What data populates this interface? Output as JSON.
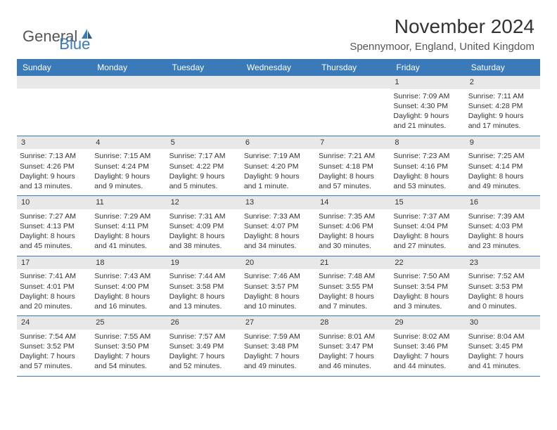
{
  "logo": {
    "general": "General",
    "blue": "Blue"
  },
  "title": "November 2024",
  "location": "Spennymoor, England, United Kingdom",
  "dayHeaders": [
    "Sunday",
    "Monday",
    "Tuesday",
    "Wednesday",
    "Thursday",
    "Friday",
    "Saturday"
  ],
  "colors": {
    "headerBar": "#3a7ab8",
    "dayNumBar": "#e8e8e8",
    "rowBorder": "#3a7ab8",
    "text": "#333333",
    "logoBlue": "#3a7ab8",
    "background": "#ffffff"
  },
  "typography": {
    "titleFontSize": 28,
    "locationFontSize": 15,
    "dayHeaderFontSize": 12,
    "cellFontSize": 10.5,
    "logoFontSize": 22
  },
  "layout": {
    "columns": 7,
    "firstDayOffset": 5,
    "cellMinHeight": 78
  },
  "weeks": [
    [
      null,
      null,
      null,
      null,
      null,
      {
        "n": "1",
        "sr": "Sunrise: 7:09 AM",
        "ss": "Sunset: 4:30 PM",
        "d1": "Daylight: 9 hours",
        "d2": "and 21 minutes."
      },
      {
        "n": "2",
        "sr": "Sunrise: 7:11 AM",
        "ss": "Sunset: 4:28 PM",
        "d1": "Daylight: 9 hours",
        "d2": "and 17 minutes."
      }
    ],
    [
      {
        "n": "3",
        "sr": "Sunrise: 7:13 AM",
        "ss": "Sunset: 4:26 PM",
        "d1": "Daylight: 9 hours",
        "d2": "and 13 minutes."
      },
      {
        "n": "4",
        "sr": "Sunrise: 7:15 AM",
        "ss": "Sunset: 4:24 PM",
        "d1": "Daylight: 9 hours",
        "d2": "and 9 minutes."
      },
      {
        "n": "5",
        "sr": "Sunrise: 7:17 AM",
        "ss": "Sunset: 4:22 PM",
        "d1": "Daylight: 9 hours",
        "d2": "and 5 minutes."
      },
      {
        "n": "6",
        "sr": "Sunrise: 7:19 AM",
        "ss": "Sunset: 4:20 PM",
        "d1": "Daylight: 9 hours",
        "d2": "and 1 minute."
      },
      {
        "n": "7",
        "sr": "Sunrise: 7:21 AM",
        "ss": "Sunset: 4:18 PM",
        "d1": "Daylight: 8 hours",
        "d2": "and 57 minutes."
      },
      {
        "n": "8",
        "sr": "Sunrise: 7:23 AM",
        "ss": "Sunset: 4:16 PM",
        "d1": "Daylight: 8 hours",
        "d2": "and 53 minutes."
      },
      {
        "n": "9",
        "sr": "Sunrise: 7:25 AM",
        "ss": "Sunset: 4:14 PM",
        "d1": "Daylight: 8 hours",
        "d2": "and 49 minutes."
      }
    ],
    [
      {
        "n": "10",
        "sr": "Sunrise: 7:27 AM",
        "ss": "Sunset: 4:13 PM",
        "d1": "Daylight: 8 hours",
        "d2": "and 45 minutes."
      },
      {
        "n": "11",
        "sr": "Sunrise: 7:29 AM",
        "ss": "Sunset: 4:11 PM",
        "d1": "Daylight: 8 hours",
        "d2": "and 41 minutes."
      },
      {
        "n": "12",
        "sr": "Sunrise: 7:31 AM",
        "ss": "Sunset: 4:09 PM",
        "d1": "Daylight: 8 hours",
        "d2": "and 38 minutes."
      },
      {
        "n": "13",
        "sr": "Sunrise: 7:33 AM",
        "ss": "Sunset: 4:07 PM",
        "d1": "Daylight: 8 hours",
        "d2": "and 34 minutes."
      },
      {
        "n": "14",
        "sr": "Sunrise: 7:35 AM",
        "ss": "Sunset: 4:06 PM",
        "d1": "Daylight: 8 hours",
        "d2": "and 30 minutes."
      },
      {
        "n": "15",
        "sr": "Sunrise: 7:37 AM",
        "ss": "Sunset: 4:04 PM",
        "d1": "Daylight: 8 hours",
        "d2": "and 27 minutes."
      },
      {
        "n": "16",
        "sr": "Sunrise: 7:39 AM",
        "ss": "Sunset: 4:03 PM",
        "d1": "Daylight: 8 hours",
        "d2": "and 23 minutes."
      }
    ],
    [
      {
        "n": "17",
        "sr": "Sunrise: 7:41 AM",
        "ss": "Sunset: 4:01 PM",
        "d1": "Daylight: 8 hours",
        "d2": "and 20 minutes."
      },
      {
        "n": "18",
        "sr": "Sunrise: 7:43 AM",
        "ss": "Sunset: 4:00 PM",
        "d1": "Daylight: 8 hours",
        "d2": "and 16 minutes."
      },
      {
        "n": "19",
        "sr": "Sunrise: 7:44 AM",
        "ss": "Sunset: 3:58 PM",
        "d1": "Daylight: 8 hours",
        "d2": "and 13 minutes."
      },
      {
        "n": "20",
        "sr": "Sunrise: 7:46 AM",
        "ss": "Sunset: 3:57 PM",
        "d1": "Daylight: 8 hours",
        "d2": "and 10 minutes."
      },
      {
        "n": "21",
        "sr": "Sunrise: 7:48 AM",
        "ss": "Sunset: 3:55 PM",
        "d1": "Daylight: 8 hours",
        "d2": "and 7 minutes."
      },
      {
        "n": "22",
        "sr": "Sunrise: 7:50 AM",
        "ss": "Sunset: 3:54 PM",
        "d1": "Daylight: 8 hours",
        "d2": "and 3 minutes."
      },
      {
        "n": "23",
        "sr": "Sunrise: 7:52 AM",
        "ss": "Sunset: 3:53 PM",
        "d1": "Daylight: 8 hours",
        "d2": "and 0 minutes."
      }
    ],
    [
      {
        "n": "24",
        "sr": "Sunrise: 7:54 AM",
        "ss": "Sunset: 3:52 PM",
        "d1": "Daylight: 7 hours",
        "d2": "and 57 minutes."
      },
      {
        "n": "25",
        "sr": "Sunrise: 7:55 AM",
        "ss": "Sunset: 3:50 PM",
        "d1": "Daylight: 7 hours",
        "d2": "and 54 minutes."
      },
      {
        "n": "26",
        "sr": "Sunrise: 7:57 AM",
        "ss": "Sunset: 3:49 PM",
        "d1": "Daylight: 7 hours",
        "d2": "and 52 minutes."
      },
      {
        "n": "27",
        "sr": "Sunrise: 7:59 AM",
        "ss": "Sunset: 3:48 PM",
        "d1": "Daylight: 7 hours",
        "d2": "and 49 minutes."
      },
      {
        "n": "28",
        "sr": "Sunrise: 8:01 AM",
        "ss": "Sunset: 3:47 PM",
        "d1": "Daylight: 7 hours",
        "d2": "and 46 minutes."
      },
      {
        "n": "29",
        "sr": "Sunrise: 8:02 AM",
        "ss": "Sunset: 3:46 PM",
        "d1": "Daylight: 7 hours",
        "d2": "and 44 minutes."
      },
      {
        "n": "30",
        "sr": "Sunrise: 8:04 AM",
        "ss": "Sunset: 3:45 PM",
        "d1": "Daylight: 7 hours",
        "d2": "and 41 minutes."
      }
    ]
  ]
}
